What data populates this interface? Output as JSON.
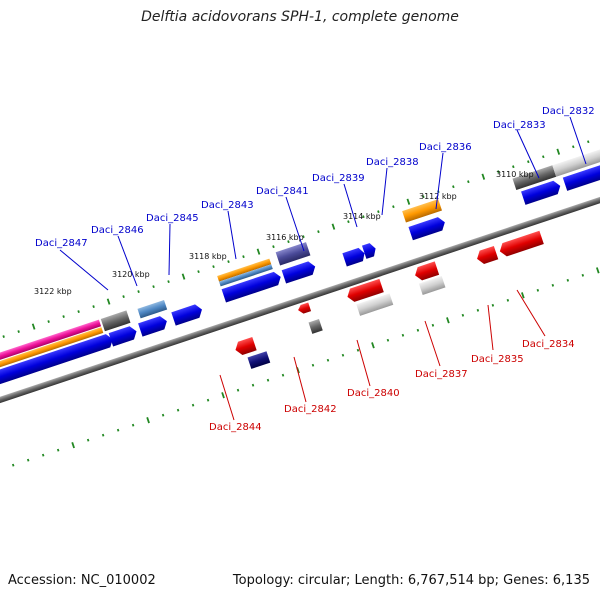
{
  "title": "Delftia acidovorans SPH-1, complete genome",
  "accession": "Accession: NC_010002",
  "summary": "Topology: circular; Length: 6,767,514 bp; Genes: 6,135",
  "colors": {
    "forward": "#0000cc",
    "reverse": "#cc0000",
    "ticks": "#228822"
  },
  "kbp_labels": [
    "3122 kbp",
    "3120 kbp",
    "3118 kbp",
    "3116 kbp",
    "3114 kbp",
    "3112 kbp",
    "3110 kbp"
  ],
  "forward_genes": [
    "Daci_2847",
    "Daci_2846",
    "Daci_2845",
    "Daci_2843",
    "Daci_2841",
    "Daci_2839",
    "Daci_2838",
    "Daci_2836",
    "Daci_2833",
    "Daci_2832"
  ],
  "reverse_genes": [
    "Daci_2844",
    "Daci_2842",
    "Daci_2840",
    "Daci_2837",
    "Daci_2835",
    "Daci_2834"
  ]
}
